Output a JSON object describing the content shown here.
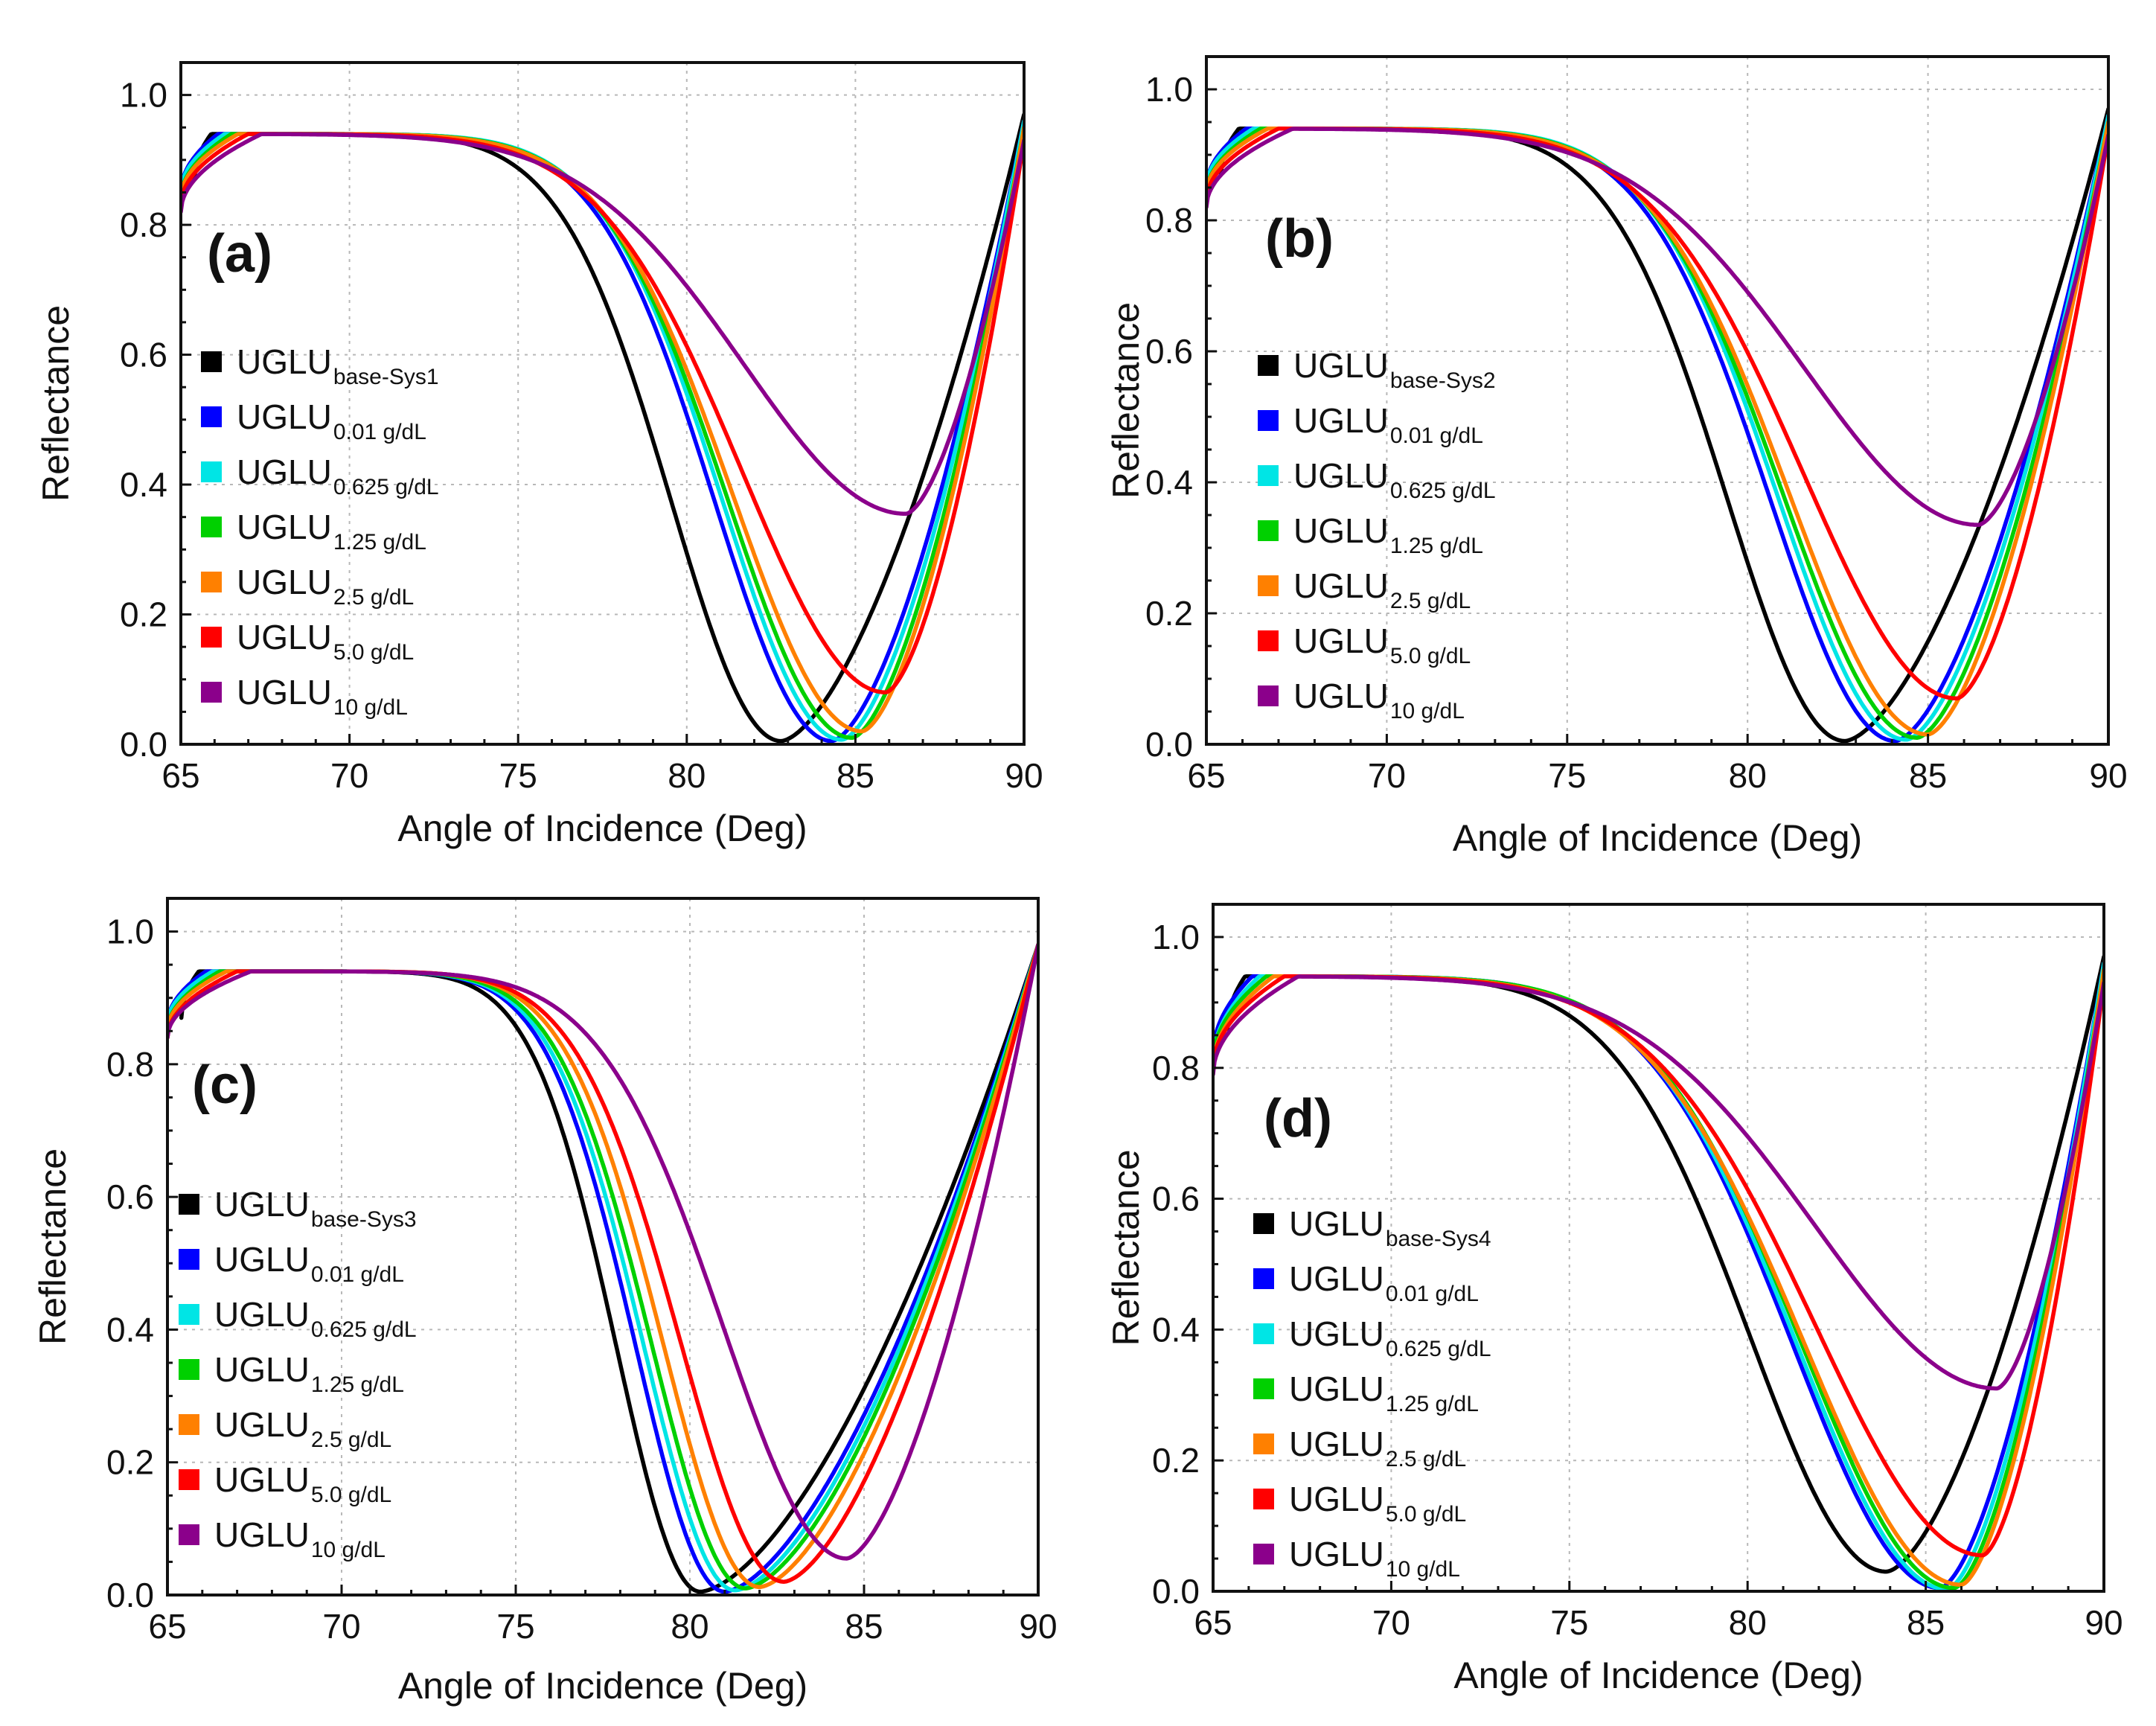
{
  "chart_data": [
    {
      "type": "line",
      "panel_label": "(a)",
      "xlabel": "Angle of Incidence (Deg)",
      "ylabel": "Reflectance",
      "xlim": [
        65,
        90
      ],
      "ylim": [
        0,
        1.05
      ],
      "x_ticks": [
        "65",
        "70",
        "75",
        "80",
        "85",
        "90"
      ],
      "y_ticks": [
        "0.0",
        "0.2",
        "0.4",
        "0.6",
        "0.8",
        "1.0"
      ],
      "grid": true,
      "legend_position": "left",
      "series": [
        {
          "name": "UGLU",
          "sub": "base-Sys1",
          "color": "#000000",
          "x_start": 65.4,
          "x_flat": 65.9,
          "r_start": 0.87,
          "x_min": 82.8,
          "r_min": 0.005,
          "w_left": 4.6,
          "r_end": 0.97
        },
        {
          "name": "UGLU",
          "sub": "0.01 g/dL",
          "color": "#0000ff",
          "x_start": 65.0,
          "x_flat": 66.1,
          "r_start": 0.85,
          "x_min": 84.3,
          "r_min": 0.005,
          "w_left": 4.9,
          "r_end": 0.96
        },
        {
          "name": "UGLU",
          "sub": "0.625 g/dL",
          "color": "#00e5e5",
          "x_start": 65.0,
          "x_flat": 66.3,
          "r_start": 0.85,
          "x_min": 84.6,
          "r_min": 0.007,
          "w_left": 5.0,
          "r_end": 0.96
        },
        {
          "name": "UGLU",
          "sub": "1.25 g/dL",
          "color": "#00d000",
          "x_start": 65.0,
          "x_flat": 66.5,
          "r_start": 0.84,
          "x_min": 84.9,
          "r_min": 0.01,
          "w_left": 5.2,
          "r_end": 0.95
        },
        {
          "name": "UGLU",
          "sub": "2.5 g/dL",
          "color": "#ff8000",
          "x_start": 65.0,
          "x_flat": 66.7,
          "r_start": 0.84,
          "x_min": 85.2,
          "r_min": 0.02,
          "w_left": 5.4,
          "r_end": 0.95
        },
        {
          "name": "UGLU",
          "sub": "5.0 g/dL",
          "color": "#ff0000",
          "x_start": 65.0,
          "x_flat": 67.0,
          "r_start": 0.83,
          "x_min": 85.9,
          "r_min": 0.08,
          "w_left": 6.0,
          "r_end": 0.93
        },
        {
          "name": "UGLU",
          "sub": "10 g/dL",
          "color": "#8b008b",
          "x_start": 65.0,
          "x_flat": 67.4,
          "r_start": 0.82,
          "x_min": 86.5,
          "r_min": 0.355,
          "w_left": 6.8,
          "r_end": 0.93
        }
      ]
    },
    {
      "type": "line",
      "panel_label": "(b)",
      "xlabel": "Angle of Incidence (Deg)",
      "ylabel": "Reflectance",
      "xlim": [
        65,
        90
      ],
      "ylim": [
        0,
        1.05
      ],
      "x_ticks": [
        "65",
        "70",
        "75",
        "80",
        "85",
        "90"
      ],
      "y_ticks": [
        "0.0",
        "0.2",
        "0.4",
        "0.6",
        "0.8",
        "1.0"
      ],
      "grid": true,
      "legend_position": "left",
      "series": [
        {
          "name": "UGLU",
          "sub": "base-Sys2",
          "color": "#000000",
          "x_start": 65.4,
          "x_flat": 65.9,
          "r_start": 0.87,
          "x_min": 82.7,
          "r_min": 0.005,
          "w_left": 4.6,
          "r_end": 0.97
        },
        {
          "name": "UGLU",
          "sub": "0.01 g/dL",
          "color": "#0000ff",
          "x_start": 65.0,
          "x_flat": 66.1,
          "r_start": 0.85,
          "x_min": 84.1,
          "r_min": 0.005,
          "w_left": 4.9,
          "r_end": 0.96
        },
        {
          "name": "UGLU",
          "sub": "0.625 g/dL",
          "color": "#00e5e5",
          "x_start": 65.0,
          "x_flat": 66.3,
          "r_start": 0.85,
          "x_min": 84.4,
          "r_min": 0.007,
          "w_left": 5.0,
          "r_end": 0.96
        },
        {
          "name": "UGLU",
          "sub": "1.25 g/dL",
          "color": "#00d000",
          "x_start": 65.0,
          "x_flat": 66.5,
          "r_start": 0.84,
          "x_min": 84.7,
          "r_min": 0.01,
          "w_left": 5.2,
          "r_end": 0.95
        },
        {
          "name": "UGLU",
          "sub": "2.5 g/dL",
          "color": "#ff8000",
          "x_start": 65.0,
          "x_flat": 66.7,
          "r_start": 0.84,
          "x_min": 85.0,
          "r_min": 0.015,
          "w_left": 5.4,
          "r_end": 0.95
        },
        {
          "name": "UGLU",
          "sub": "5.0 g/dL",
          "color": "#ff0000",
          "x_start": 65.0,
          "x_flat": 67.0,
          "r_start": 0.83,
          "x_min": 85.8,
          "r_min": 0.07,
          "w_left": 6.0,
          "r_end": 0.93
        },
        {
          "name": "UGLU",
          "sub": "10 g/dL",
          "color": "#8b008b",
          "x_start": 65.0,
          "x_flat": 67.4,
          "r_start": 0.82,
          "x_min": 86.4,
          "r_min": 0.335,
          "w_left": 6.8,
          "r_end": 0.93
        }
      ]
    },
    {
      "type": "line",
      "panel_label": "(c)",
      "xlabel": "Angle of Incidence (Deg)",
      "ylabel": "Reflectance",
      "xlim": [
        65,
        90
      ],
      "ylim": [
        0,
        1.05
      ],
      "x_ticks": [
        "65",
        "70",
        "75",
        "80",
        "85",
        "90"
      ],
      "y_ticks": [
        "0.0",
        "0.2",
        "0.4",
        "0.6",
        "0.8",
        "1.0"
      ],
      "grid": true,
      "legend_position": "left",
      "series": [
        {
          "name": "UGLU",
          "sub": "base-Sys3",
          "color": "#000000",
          "x_start": 65.4,
          "x_flat": 65.9,
          "r_start": 0.87,
          "x_min": 80.3,
          "r_min": 0.005,
          "w_left": 3.4,
          "r_end": 0.98
        },
        {
          "name": "UGLU",
          "sub": "0.01 g/dL",
          "color": "#0000ff",
          "x_start": 65.0,
          "x_flat": 66.1,
          "r_start": 0.86,
          "x_min": 81.0,
          "r_min": 0.005,
          "w_left": 3.6,
          "r_end": 0.98
        },
        {
          "name": "UGLU",
          "sub": "0.625 g/dL",
          "color": "#00e5e5",
          "x_start": 65.0,
          "x_flat": 66.3,
          "r_start": 0.86,
          "x_min": 81.3,
          "r_min": 0.007,
          "w_left": 3.7,
          "r_end": 0.98
        },
        {
          "name": "UGLU",
          "sub": "1.25 g/dL",
          "color": "#00d000",
          "x_start": 65.0,
          "x_flat": 66.5,
          "r_start": 0.85,
          "x_min": 81.6,
          "r_min": 0.01,
          "w_left": 3.8,
          "r_end": 0.98
        },
        {
          "name": "UGLU",
          "sub": "2.5 g/dL",
          "color": "#ff8000",
          "x_start": 65.0,
          "x_flat": 66.7,
          "r_start": 0.85,
          "x_min": 82.0,
          "r_min": 0.012,
          "w_left": 3.9,
          "r_end": 0.98
        },
        {
          "name": "UGLU",
          "sub": "5.0 g/dL",
          "color": "#ff0000",
          "x_start": 65.0,
          "x_flat": 67.0,
          "r_start": 0.84,
          "x_min": 82.7,
          "r_min": 0.02,
          "w_left": 4.2,
          "r_end": 0.98
        },
        {
          "name": "UGLU",
          "sub": "10 g/dL",
          "color": "#8b008b",
          "x_start": 65.0,
          "x_flat": 67.4,
          "r_start": 0.84,
          "x_min": 84.5,
          "r_min": 0.055,
          "w_left": 5.0,
          "r_end": 0.98
        }
      ]
    },
    {
      "type": "line",
      "panel_label": "(d)",
      "xlabel": "Angle of Incidence (Deg)",
      "ylabel": "Reflectance",
      "xlim": [
        65,
        90
      ],
      "ylim": [
        0,
        1.05
      ],
      "x_ticks": [
        "65",
        "70",
        "75",
        "80",
        "85",
        "90"
      ],
      "y_ticks": [
        "0.0",
        "0.2",
        "0.4",
        "0.6",
        "0.8",
        "1.0"
      ],
      "grid": true,
      "legend_position": "left",
      "series": [
        {
          "name": "UGLU",
          "sub": "base-Sys4",
          "color": "#000000",
          "x_start": 65.4,
          "x_flat": 65.9,
          "r_start": 0.86,
          "x_min": 83.9,
          "r_min": 0.03,
          "w_left": 5.4,
          "r_end": 0.97
        },
        {
          "name": "UGLU",
          "sub": "0.01 g/dL",
          "color": "#0000ff",
          "x_start": 65.0,
          "x_flat": 66.1,
          "r_start": 0.82,
          "x_min": 85.4,
          "r_min": 0.005,
          "w_left": 5.8,
          "r_end": 0.96
        },
        {
          "name": "UGLU",
          "sub": "0.625 g/dL",
          "color": "#00e5e5",
          "x_start": 65.0,
          "x_flat": 66.3,
          "r_start": 0.81,
          "x_min": 85.6,
          "r_min": 0.003,
          "w_left": 5.9,
          "r_end": 0.96
        },
        {
          "name": "UGLU",
          "sub": "1.25 g/dL",
          "color": "#00d000",
          "x_start": 65.0,
          "x_flat": 66.5,
          "r_start": 0.81,
          "x_min": 85.8,
          "r_min": 0.005,
          "w_left": 6.0,
          "r_end": 0.95
        },
        {
          "name": "UGLU",
          "sub": "2.5 g/dL",
          "color": "#ff8000",
          "x_start": 65.0,
          "x_flat": 66.7,
          "r_start": 0.8,
          "x_min": 86.0,
          "r_min": 0.01,
          "w_left": 6.2,
          "r_end": 0.95
        },
        {
          "name": "UGLU",
          "sub": "5.0 g/dL",
          "color": "#ff0000",
          "x_start": 65.0,
          "x_flat": 67.0,
          "r_start": 0.8,
          "x_min": 86.6,
          "r_min": 0.055,
          "w_left": 6.6,
          "r_end": 0.93
        },
        {
          "name": "UGLU",
          "sub": "10 g/dL",
          "color": "#8b008b",
          "x_start": 65.0,
          "x_flat": 67.4,
          "r_start": 0.79,
          "x_min": 87.0,
          "r_min": 0.31,
          "w_left": 7.2,
          "r_end": 0.93
        }
      ]
    }
  ]
}
